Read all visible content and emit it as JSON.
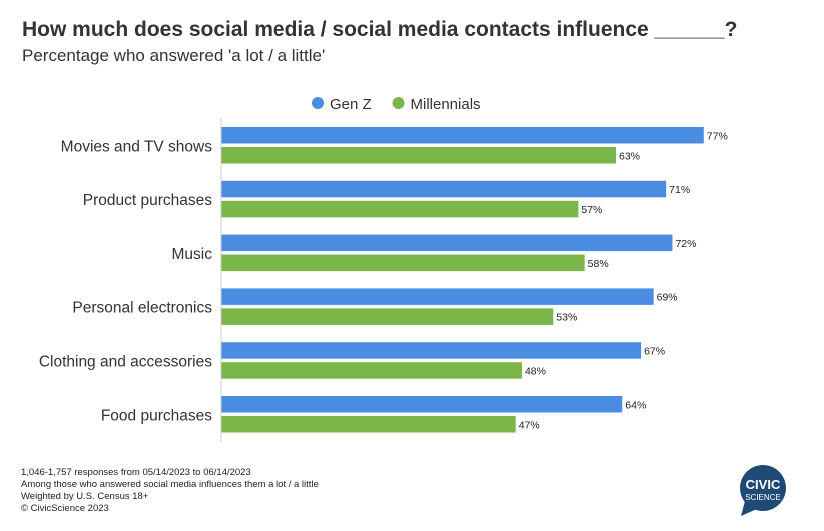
{
  "chart_data": {
    "type": "bar",
    "orientation": "horizontal",
    "title": "How much does social media / social media contacts influence ______?",
    "subtitle": "Percentage who answered 'a lot / a little'",
    "categories": [
      "Movies and TV shows",
      "Product purchases",
      "Music",
      "Personal electronics",
      "Clothing and accessories",
      "Food purchases"
    ],
    "series": [
      {
        "name": "Gen Z",
        "color": "#4a8de0",
        "values": [
          77,
          71,
          72,
          69,
          67,
          64
        ]
      },
      {
        "name": "Millennials",
        "color": "#7ab648",
        "values": [
          63,
          57,
          58,
          53,
          48,
          47
        ]
      }
    ],
    "value_suffix": "%",
    "xlim": [
      0,
      100
    ],
    "legend": "top-center",
    "grid": false
  },
  "footer": {
    "lines": [
      "1,046-1,757 responses from 05/14/2023 to 06/14/2023",
      "Among those who answered social media influences them a lot / a little",
      "Weighted by U.S. Census 18+",
      "© CivicScience 2023"
    ]
  },
  "logo": {
    "line1": "CIVIC",
    "line2": "SCIENCE",
    "color": "#1f4a75"
  }
}
